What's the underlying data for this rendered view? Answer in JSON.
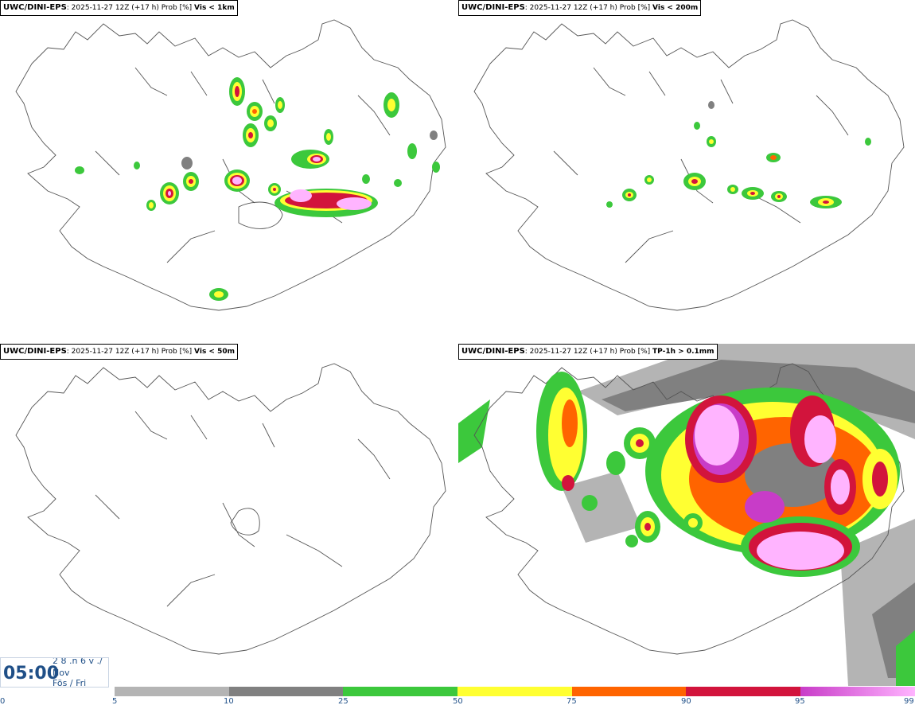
{
  "panels": [
    {
      "model": "UWC/DINI-EPS",
      "meta": ": 2025-11-27 12Z (+17 h) Prob [%]",
      "variable": "Vis < 1km"
    },
    {
      "model": "UWC/DINI-EPS",
      "meta": ": 2025-11-27 12Z (+17 h) Prob [%]",
      "variable": "Vis < 200m"
    },
    {
      "model": "UWC/DINI-EPS",
      "meta": ": 2025-11-27 12Z (+17 h) Prob [%]",
      "variable": "Vis < 50m"
    },
    {
      "model": "UWC/DINI-EPS",
      "meta": ": 2025-11-27 12Z (+17 h) Prob [%]",
      "variable": "TP-1h > 0.1mm"
    }
  ],
  "timestamp": {
    "time": "05:00",
    "day": "2 8 .n 6 v ./",
    "month": "Nov",
    "weekday": "Fös / Fri"
  },
  "legend": {
    "ticks": [
      "0",
      "5",
      "10",
      "25",
      "50",
      "75",
      "90",
      "95",
      "99"
    ],
    "colors": [
      "#b4b4b4",
      "#808080",
      "#3cc83c",
      "#ffff32",
      "#ff6400",
      "#d2143c",
      "#c83cc8",
      "#ffb4ff"
    ]
  }
}
